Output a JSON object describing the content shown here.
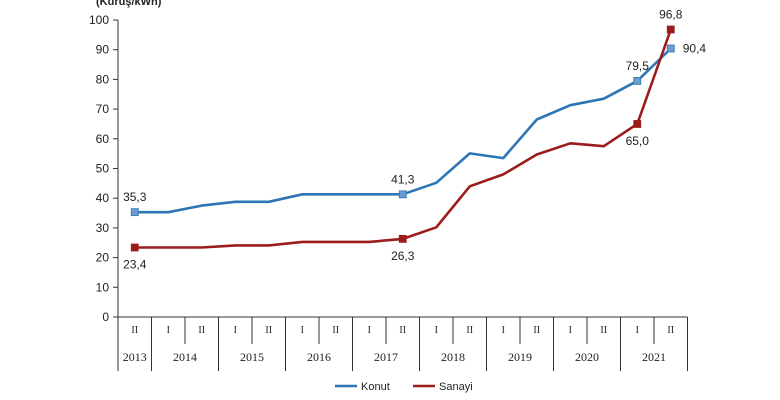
{
  "chart_data": {
    "type": "line",
    "ylabel": "(Kuruş/kWh)",
    "ylim": [
      0,
      100
    ],
    "yticks": [
      0,
      10,
      20,
      30,
      40,
      50,
      60,
      70,
      80,
      90,
      100
    ],
    "grid": false,
    "legend_position": "bottom",
    "x": [
      "2013-II",
      "2014-I",
      "2014-II",
      "2015-I",
      "2015-II",
      "2016-I",
      "2016-II",
      "2017-I",
      "2017-II",
      "2018-I",
      "2018-II",
      "2019-I",
      "2019-II",
      "2020-I",
      "2020-II",
      "2021-I",
      "2021-II"
    ],
    "periods": [
      "II",
      "I",
      "II",
      "I",
      "II",
      "I",
      "II",
      "I",
      "II",
      "I",
      "II",
      "I",
      "II",
      "I",
      "II",
      "I",
      "II"
    ],
    "years": [
      {
        "label": "2013",
        "span": 1
      },
      {
        "label": "2014",
        "span": 2
      },
      {
        "label": "2015",
        "span": 2
      },
      {
        "label": "2016",
        "span": 2
      },
      {
        "label": "2017",
        "span": 2
      },
      {
        "label": "2018",
        "span": 2
      },
      {
        "label": "2019",
        "span": 2
      },
      {
        "label": "2020",
        "span": 2
      },
      {
        "label": "2021",
        "span": 2
      }
    ],
    "series": [
      {
        "name": "Konut",
        "color": "#2e75b6",
        "marker_color": "#6d9bd1",
        "values": [
          35.3,
          35.3,
          37.5,
          38.8,
          38.8,
          41.3,
          41.3,
          41.3,
          41.3,
          45.2,
          55.1,
          53.5,
          66.5,
          71.3,
          73.5,
          79.5,
          90.4
        ],
        "labels": [
          {
            "index": 0,
            "text": "35,3",
            "pos": "above"
          },
          {
            "index": 8,
            "text": "41,3",
            "pos": "above"
          },
          {
            "index": 15,
            "text": "79,5",
            "pos": "above"
          },
          {
            "index": 16,
            "text": "90,4",
            "pos": "right"
          }
        ],
        "markers": [
          0,
          8,
          15,
          16
        ]
      },
      {
        "name": "Sanayi",
        "color": "#9c1c1c",
        "marker_color": "#9c1c1c",
        "values": [
          23.4,
          23.4,
          23.4,
          24.1,
          24.1,
          25.3,
          25.3,
          25.3,
          26.3,
          30.2,
          44.0,
          48.0,
          54.7,
          58.5,
          57.5,
          65.0,
          96.8
        ],
        "labels": [
          {
            "index": 0,
            "text": "23,4",
            "pos": "below"
          },
          {
            "index": 8,
            "text": "26,3",
            "pos": "below"
          },
          {
            "index": 15,
            "text": "65,0",
            "pos": "below"
          },
          {
            "index": 16,
            "text": "96,8",
            "pos": "above"
          }
        ],
        "markers": [
          0,
          8,
          15,
          16
        ]
      }
    ]
  }
}
